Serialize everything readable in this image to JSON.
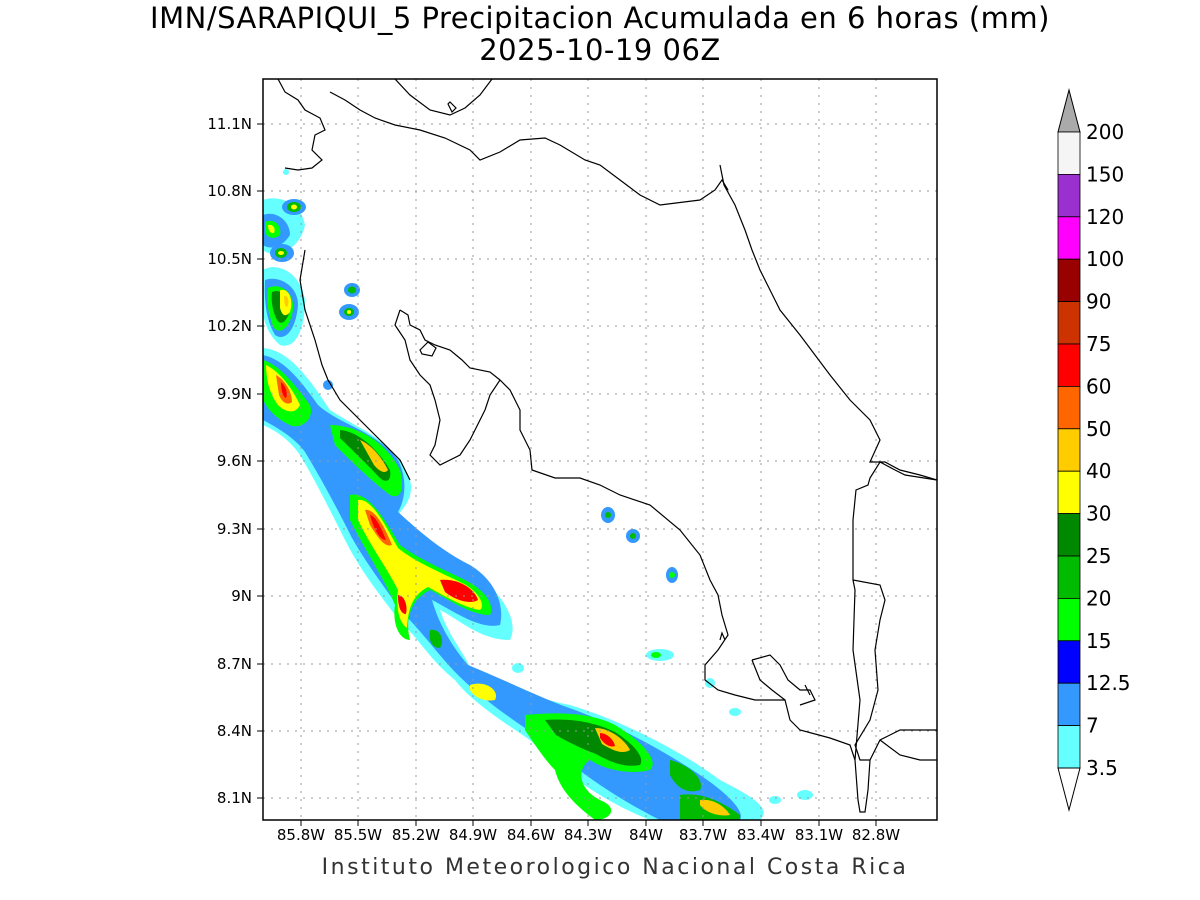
{
  "title": {
    "line1": "IMN/SARAPIQUI_5 Precipitacion Acumulada en 6 horas (mm)",
    "line2": "2025-10-19 06Z"
  },
  "footer": "Instituto Meteorologico Nacional Costa Rica",
  "map": {
    "lat_ticks": [
      "11.1N",
      "10.8N",
      "10.5N",
      "10.2N",
      "9.9N",
      "9.6N",
      "9.3N",
      "9N",
      "8.7N",
      "8.4N",
      "8.1N"
    ],
    "lon_ticks": [
      "85.8W",
      "85.5W",
      "85.2W",
      "84.9W",
      "84.6W",
      "84.3W",
      "84W",
      "83.7W",
      "83.4W",
      "83.1W",
      "82.8W"
    ]
  },
  "colorbar": {
    "labels": [
      "200",
      "150",
      "120",
      "100",
      "90",
      "75",
      "60",
      "50",
      "40",
      "30",
      "25",
      "20",
      "15",
      "12.5",
      "7",
      "3.5"
    ],
    "colors": [
      "#f5f5f5",
      "#9b30d0",
      "#ff00ff",
      "#990000",
      "#cc3300",
      "#ff0000",
      "#ff6600",
      "#ffcc00",
      "#ffff00",
      "#008800",
      "#00bb00",
      "#00ff00",
      "#0000ff",
      "#3399ff",
      "#66ffff"
    ],
    "top_arrow_color": "#aaaaaa",
    "bottom_arrow_color": "#ffffff"
  },
  "precip_palette": {
    "3.5": "#66ffff",
    "7": "#3399ff",
    "12.5": "#0000ff",
    "15": "#00ff00",
    "20": "#00bb00",
    "25": "#008800",
    "30": "#ffff00",
    "40": "#ffcc00",
    "50": "#ff6600",
    "60": "#ff0000"
  }
}
